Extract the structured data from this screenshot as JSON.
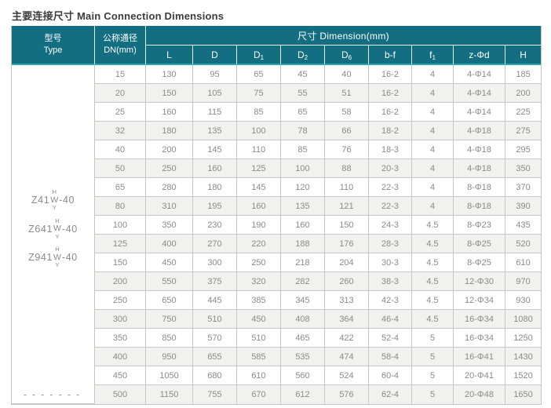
{
  "page": {
    "title": "主要连接尺寸 Main Connection Dimensions"
  },
  "colors": {
    "header_teal": "#126e80",
    "header_accent": "#2aa2b6",
    "stripe": "#f1f1ef",
    "border": "#c6c6c6",
    "cell_text": "#8a8a8a",
    "title_text": "#3c3c3c"
  },
  "table": {
    "type_header": {
      "zh": "型号",
      "en": "Type"
    },
    "dn_header": {
      "zh": "公称通径",
      "en": "DN(mm)"
    },
    "dimension_header": "尺寸 Dimension(mm)",
    "columns": [
      {
        "base": "L",
        "sub": ""
      },
      {
        "base": "D",
        "sub": ""
      },
      {
        "base": "D",
        "sub": "1"
      },
      {
        "base": "D",
        "sub": "2"
      },
      {
        "base": "D",
        "sub": "6"
      },
      {
        "base": "b-f",
        "sub": ""
      },
      {
        "base": "f",
        "sub": "1"
      },
      {
        "base": "z-Φd",
        "sub": ""
      },
      {
        "base": "H",
        "sub": ""
      }
    ],
    "models": [
      {
        "prefix": "Z41",
        "stack_top": "H",
        "stack_mid": "W",
        "stack_bottom": "Y",
        "suffix": "-40"
      },
      {
        "prefix": "Z641",
        "stack_top": "H",
        "stack_mid": "W",
        "stack_bottom": "Y",
        "suffix": "-40"
      },
      {
        "prefix": "Z941",
        "stack_top": "H",
        "stack_mid": "W",
        "stack_bottom": "Y",
        "suffix": "-40"
      }
    ],
    "continuation_dashes": "-------",
    "rows": [
      {
        "dn": "15",
        "values": [
          "130",
          "95",
          "65",
          "45",
          "40",
          "16-2",
          "4",
          "4-Φ14",
          "185"
        ]
      },
      {
        "dn": "20",
        "values": [
          "150",
          "105",
          "75",
          "55",
          "51",
          "16-2",
          "4",
          "4-Φ14",
          "200"
        ]
      },
      {
        "dn": "25",
        "values": [
          "160",
          "115",
          "85",
          "65",
          "58",
          "16-2",
          "4",
          "4-Φ14",
          "225"
        ]
      },
      {
        "dn": "32",
        "values": [
          "180",
          "135",
          "100",
          "78",
          "66",
          "18-2",
          "4",
          "4-Φ18",
          "275"
        ]
      },
      {
        "dn": "40",
        "values": [
          "200",
          "145",
          "110",
          "85",
          "76",
          "18-3",
          "4",
          "4-Φ18",
          "295"
        ]
      },
      {
        "dn": "50",
        "values": [
          "250",
          "160",
          "125",
          "100",
          "88",
          "20-3",
          "4",
          "4-Φ18",
          "350"
        ]
      },
      {
        "dn": "65",
        "values": [
          "280",
          "180",
          "145",
          "120",
          "110",
          "22-3",
          "4",
          "8-Φ18",
          "370"
        ]
      },
      {
        "dn": "80",
        "values": [
          "310",
          "195",
          "160",
          "135",
          "121",
          "22-3",
          "4",
          "8-Φ18",
          "390"
        ]
      },
      {
        "dn": "100",
        "values": [
          "350",
          "230",
          "190",
          "160",
          "150",
          "24-3",
          "4.5",
          "8-Φ23",
          "435"
        ]
      },
      {
        "dn": "125",
        "values": [
          "400",
          "270",
          "220",
          "188",
          "176",
          "28-3",
          "4.5",
          "8-Φ25",
          "520"
        ]
      },
      {
        "dn": "150",
        "values": [
          "450",
          "300",
          "250",
          "218",
          "204",
          "30-3",
          "4.5",
          "8-Φ25",
          "610"
        ]
      },
      {
        "dn": "200",
        "values": [
          "550",
          "375",
          "320",
          "282",
          "260",
          "38-3",
          "4.5",
          "12-Φ30",
          "970"
        ]
      },
      {
        "dn": "250",
        "values": [
          "650",
          "445",
          "385",
          "345",
          "313",
          "42-3",
          "4.5",
          "12-Φ34",
          "930"
        ]
      },
      {
        "dn": "300",
        "values": [
          "750",
          "510",
          "450",
          "408",
          "364",
          "46-4",
          "4.5",
          "16-Φ34",
          "1080"
        ]
      },
      {
        "dn": "350",
        "values": [
          "850",
          "570",
          "510",
          "465",
          "422",
          "52-4",
          "5",
          "16-Φ34",
          "1250"
        ]
      },
      {
        "dn": "400",
        "values": [
          "950",
          "655",
          "585",
          "535",
          "474",
          "58-4",
          "5",
          "16-Φ41",
          "1430"
        ]
      },
      {
        "dn": "450",
        "values": [
          "1050",
          "680",
          "610",
          "560",
          "524",
          "60-4",
          "5",
          "20-Φ41",
          "1520"
        ]
      },
      {
        "dn": "500",
        "values": [
          "1150",
          "755",
          "670",
          "612",
          "576",
          "62-4",
          "5",
          "20-Φ48",
          "1650"
        ]
      }
    ]
  }
}
